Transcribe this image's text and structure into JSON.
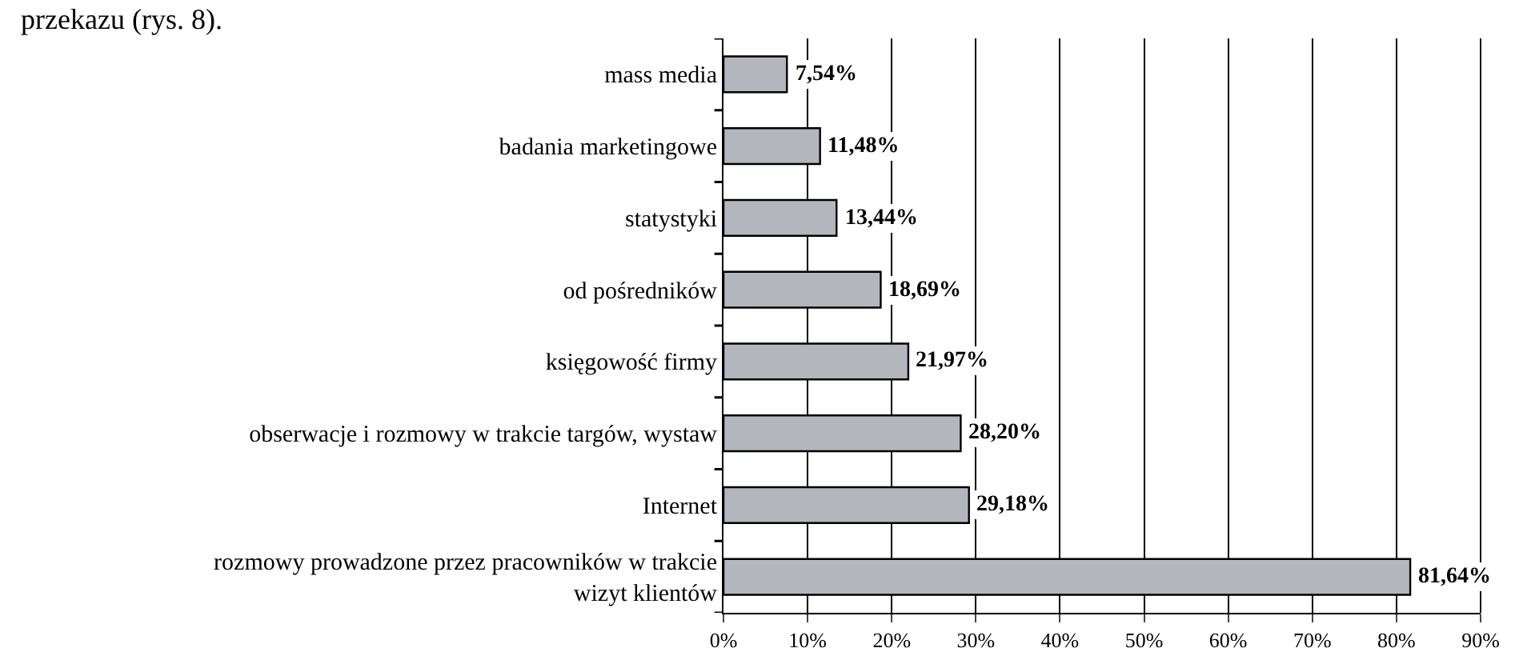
{
  "chart_data": {
    "type": "bar",
    "orientation": "horizontal",
    "annotations": [
      "przekazu (rys. 8)."
    ],
    "categories": [
      "mass media",
      "badania marketingowe",
      "statystyki",
      "od pośredników",
      "księgowość firmy",
      "obserwacje i rozmowy w trakcie targów, wystaw",
      "Internet",
      "rozmowy prowadzone przez pracowników w trakcie\nwizyt klientów"
    ],
    "values": [
      7.54,
      11.48,
      13.44,
      18.69,
      21.97,
      28.2,
      29.18,
      81.64
    ],
    "value_labels": [
      "7,54%",
      "11,48%",
      "13,44%",
      "18,69%",
      "21,97%",
      "28,20%",
      "29,18%",
      "81,64%"
    ],
    "color": "#b4b6bd",
    "xlim": [
      0,
      90
    ],
    "xticks": [
      {
        "value": 0,
        "label": "0%"
      },
      {
        "value": 10,
        "label": "10%"
      },
      {
        "value": 20,
        "label": "20%"
      },
      {
        "value": 30,
        "label": "30%"
      },
      {
        "value": 40,
        "label": "40%"
      },
      {
        "value": 50,
        "label": "50%"
      },
      {
        "value": 60,
        "label": "60%"
      },
      {
        "value": 70,
        "label": "70%"
      },
      {
        "value": 80,
        "label": "80%"
      },
      {
        "value": 90,
        "label": "90%"
      }
    ],
    "grid": "x"
  }
}
